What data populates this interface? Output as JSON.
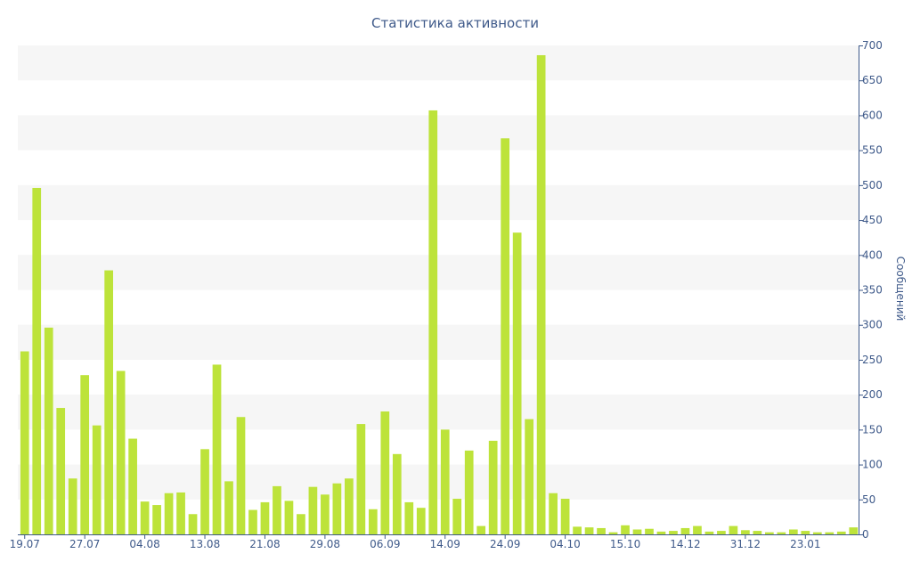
{
  "chart_data": {
    "type": "bar",
    "title": "Статистика активности",
    "xlabel": "",
    "ylabel": "Сообщений",
    "y_axis_side": "right",
    "ylim": [
      0,
      700
    ],
    "yticks": [
      0,
      50,
      100,
      150,
      200,
      250,
      300,
      350,
      400,
      450,
      500,
      550,
      600,
      650,
      700
    ],
    "grid": "alternating horizontal bands",
    "bar_color": "#bde33a",
    "band_color": "#f6f6f6",
    "text_color": "#3f5a8a",
    "x_tick_labels": [
      "19.07",
      "27.07",
      "04.08",
      "13.08",
      "21.08",
      "29.08",
      "06.09",
      "14.09",
      "24.09",
      "04.10",
      "15.10",
      "14.12",
      "31.12",
      "23.01"
    ],
    "x_tick_bar_index": [
      0,
      5,
      10,
      15,
      20,
      25,
      30,
      35,
      40,
      45,
      50,
      55,
      60,
      65
    ],
    "values": [
      262,
      496,
      296,
      181,
      80,
      228,
      156,
      378,
      234,
      137,
      47,
      42,
      59,
      60,
      29,
      122,
      243,
      76,
      168,
      35,
      46,
      69,
      48,
      29,
      68,
      57,
      73,
      80,
      158,
      36,
      176,
      115,
      46,
      38,
      607,
      150,
      51,
      120,
      12,
      134,
      567,
      432,
      165,
      686,
      59,
      51,
      11,
      10,
      9,
      3,
      13,
      7,
      8,
      4,
      5,
      9,
      12,
      4,
      5,
      12,
      6,
      5,
      3,
      3,
      7,
      5,
      3,
      3,
      4,
      10
    ]
  }
}
